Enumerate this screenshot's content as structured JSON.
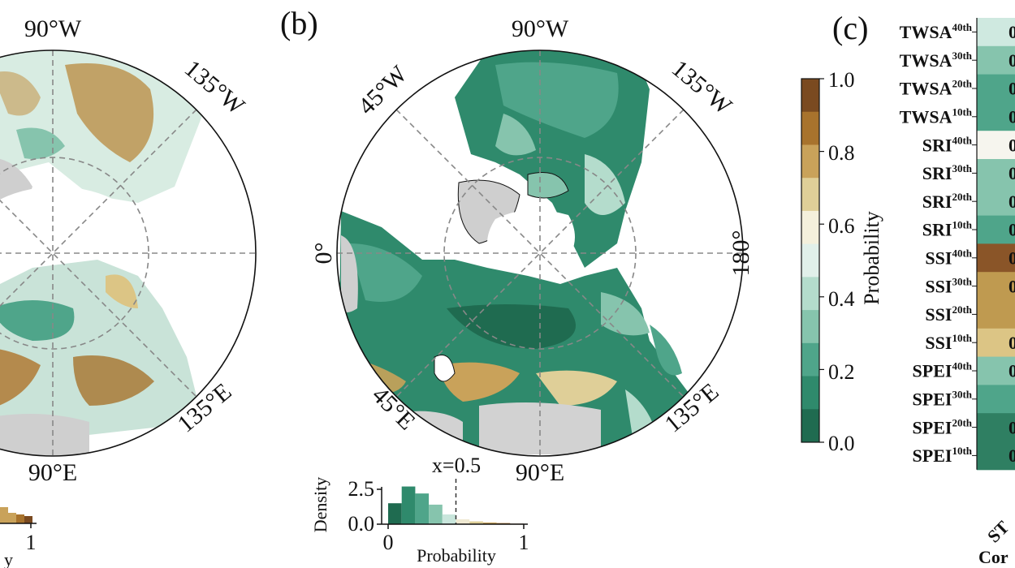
{
  "panels": {
    "a": {
      "labels": {
        "top": "90°W",
        "bottom": "90°E",
        "ne": "135°W",
        "se": "135°E"
      },
      "hist": {
        "xtick_1": "1",
        "xlabel_partial": "y"
      }
    },
    "b": {
      "tag": "(b)",
      "labels": {
        "top": "90°W",
        "bottom": "90°E",
        "left": "0°",
        "right": "180°",
        "nw": "45°W",
        "ne": "135°W",
        "sw": "45°E",
        "se": "135°E"
      },
      "hist": {
        "ylabel": "Density",
        "xlabel": "Probability",
        "yticks": [
          "0.0",
          "2.5"
        ],
        "xticks": [
          "0",
          "1"
        ],
        "threshold_label": "x=0.5",
        "threshold": 0.5,
        "bins": [
          {
            "x": 0.05,
            "density": 1.5,
            "color": "#1f6b50"
          },
          {
            "x": 0.15,
            "density": 2.7,
            "color": "#2f8a6c"
          },
          {
            "x": 0.25,
            "density": 2.2,
            "color": "#4fa58a"
          },
          {
            "x": 0.35,
            "density": 1.4,
            "color": "#86c4ad"
          },
          {
            "x": 0.45,
            "density": 0.7,
            "color": "#c9e6dc"
          },
          {
            "x": 0.55,
            "density": 0.35,
            "color": "#efe9d2"
          },
          {
            "x": 0.65,
            "density": 0.2,
            "color": "#dfcf98"
          },
          {
            "x": 0.75,
            "density": 0.12,
            "color": "#c9a25a"
          },
          {
            "x": 0.85,
            "density": 0.08,
            "color": "#a8732d"
          },
          {
            "x": 0.95,
            "density": 0.04,
            "color": "#7a4a20"
          }
        ]
      }
    },
    "c": {
      "tag": "(c)",
      "label_bottom_partial": "Cor",
      "label_rot_partial": "ST"
    }
  },
  "colorbar": {
    "label": "Probability",
    "ticks": [
      "1.0",
      "0.8",
      "0.6",
      "0.4",
      "0.2",
      "0.0"
    ],
    "colors": [
      "#7a4a20",
      "#a8732d",
      "#c9a25a",
      "#dfcf98",
      "#f4f0dc",
      "#e1f0ea",
      "#b4dccc",
      "#86c4ad",
      "#4fa58a",
      "#2f8a6c",
      "#1f6b50"
    ]
  },
  "table_rows": [
    {
      "name": "TWSA",
      "sup": "40th",
      "value": "0",
      "color": "#cfe9e0"
    },
    {
      "name": "TWSA",
      "sup": "30th",
      "value": "0",
      "color": "#86c4ad"
    },
    {
      "name": "TWSA",
      "sup": "20th",
      "value": "0",
      "color": "#4fa58a"
    },
    {
      "name": "TWSA",
      "sup": "10th",
      "value": "0",
      "color": "#4fa58a"
    },
    {
      "name": "SRI",
      "sup": "40th",
      "value": "0",
      "color": "#f6f5ee"
    },
    {
      "name": "SRI",
      "sup": "30th",
      "value": "0",
      "color": "#86c4ad"
    },
    {
      "name": "SRI",
      "sup": "20th",
      "value": "0",
      "color": "#86c4ad"
    },
    {
      "name": "SRI",
      "sup": "10th",
      "value": "0",
      "color": "#4fa58a"
    },
    {
      "name": "SSI",
      "sup": "40th",
      "value": "0",
      "color": "#8a5528"
    },
    {
      "name": "SSI",
      "sup": "30th",
      "value": "0",
      "color": "#bf9a50"
    },
    {
      "name": "SSI",
      "sup": "20th",
      "value": "",
      "color": "#bf9a50"
    },
    {
      "name": "SSI",
      "sup": "10th",
      "value": "0",
      "color": "#dcc585"
    },
    {
      "name": "SPEI",
      "sup": "40th",
      "value": "0",
      "color": "#86c4ad"
    },
    {
      "name": "SPEI",
      "sup": "30th",
      "value": "",
      "color": "#4fa58a"
    },
    {
      "name": "SPEI",
      "sup": "20th",
      "value": "0",
      "color": "#2f7f62"
    },
    {
      "name": "SPEI",
      "sup": "10th",
      "value": "0",
      "color": "#2f7f62"
    }
  ]
}
